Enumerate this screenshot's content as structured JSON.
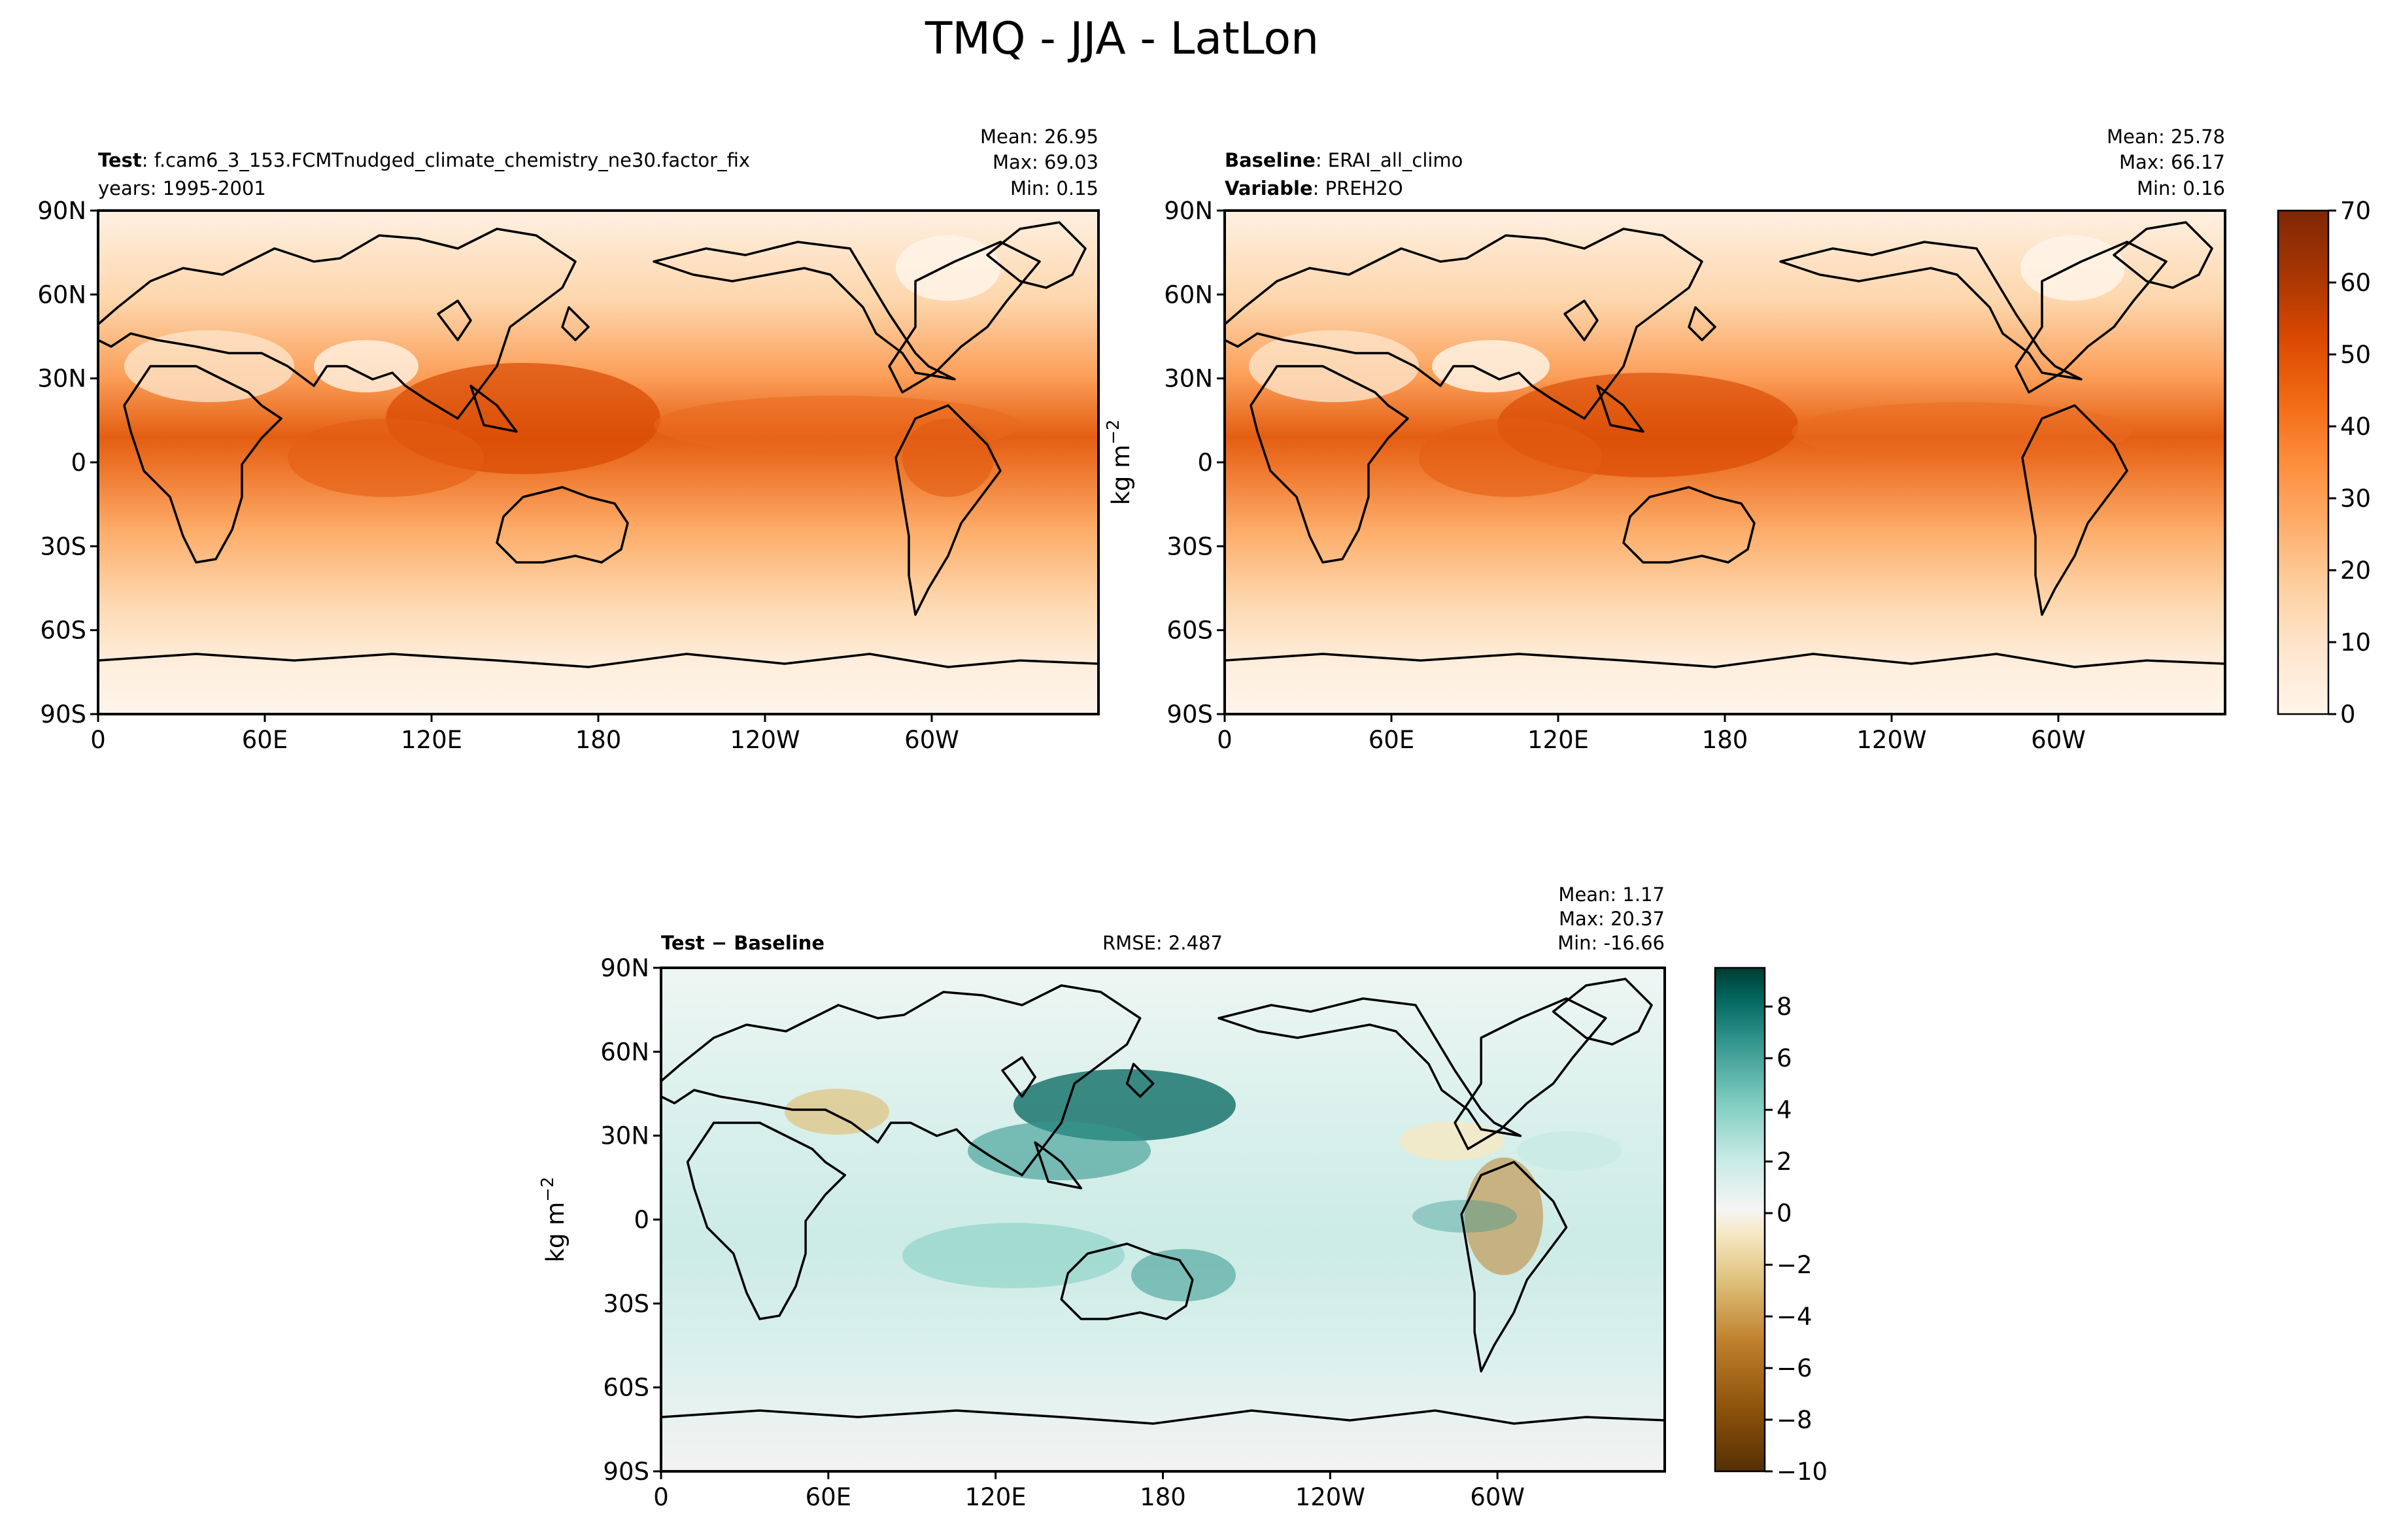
{
  "suptitle": "TMQ - JJA - LatLon",
  "colors": {
    "seq": [
      "#fff5eb",
      "#fee6ce",
      "#fdd0a2",
      "#fdae6b",
      "#fd8d3c",
      "#f16913",
      "#d94801",
      "#a63603",
      "#7f2704"
    ],
    "div_neg": [
      "#543005",
      "#8c510a",
      "#bf812d",
      "#dfc27d",
      "#f6e8c3",
      "#f5f5f5"
    ],
    "div_pos": [
      "#f5f5f5",
      "#c7eae5",
      "#80cdc1",
      "#35978f",
      "#01665e",
      "#003c30"
    ],
    "land_line": "#000000"
  },
  "lat_ticks": [
    "90N",
    "60N",
    "30N",
    "0",
    "30S",
    "60S",
    "90S"
  ],
  "lon_ticks": [
    "0",
    "60E",
    "120E",
    "180",
    "120W",
    "60W"
  ],
  "panels": {
    "test": {
      "label_bold": "Test",
      "label_text": ": f.cam6_3_153.FCMTnudged_climate_chemistry_ne30.factor_fix",
      "years": "years: 1995-2001",
      "mean": "Mean: 26.95",
      "max": "Max: 69.03",
      "min": "Min:  0.15"
    },
    "baseline": {
      "label_bold": "Baseline",
      "label_text": ": ERAI_all_climo",
      "variable_bold": "Variable",
      "variable_text": ": PREH2O",
      "mean": "Mean: 25.78",
      "max": "Max: 66.17",
      "min": "Min:  0.16",
      "unit_label": "kg m"
    },
    "diff": {
      "label": "Test − Baseline",
      "rmse": "RMSE: 2.487",
      "mean": "Mean:  1.17",
      "max": "Max: 20.37",
      "min": "Min: -16.66",
      "unit_label": "kg m"
    }
  },
  "unit_exponent": "−2",
  "chart_data": [
    {
      "type": "heatmap",
      "name": "Test",
      "variable": "TMQ",
      "season": "JJA",
      "units": "kg m^-2",
      "xlim": [
        0,
        360
      ],
      "ylim": [
        -90,
        90
      ],
      "stats": {
        "mean": 26.95,
        "max": 69.03,
        "min": 0.15
      }
    },
    {
      "type": "heatmap",
      "name": "Baseline",
      "variable": "PREH2O",
      "units": "kg m^-2",
      "xlim": [
        0,
        360
      ],
      "ylim": [
        -90,
        90
      ],
      "stats": {
        "mean": 25.78,
        "max": 66.17,
        "min": 0.16
      }
    },
    {
      "type": "heatmap",
      "name": "Test - Baseline",
      "units": "kg m^-2",
      "xlim": [
        0,
        360
      ],
      "ylim": [
        -90,
        90
      ],
      "stats": {
        "mean": 1.17,
        "max": 20.37,
        "min": -16.66,
        "rmse": 2.487
      }
    }
  ],
  "colorbars": {
    "top": {
      "ticks": [
        "0",
        "10",
        "20",
        "30",
        "40",
        "50",
        "60",
        "70"
      ],
      "values": [
        0,
        10,
        20,
        30,
        40,
        50,
        60,
        70
      ],
      "range": [
        0,
        70
      ]
    },
    "diff": {
      "ticks": [
        "8",
        "6",
        "4",
        "2",
        "0",
        "−2",
        "−4",
        "−6",
        "−8",
        "−10"
      ],
      "values": [
        8,
        6,
        4,
        2,
        0,
        -2,
        -4,
        -6,
        -8,
        -10
      ],
      "range": [
        -10,
        9.5
      ]
    }
  }
}
